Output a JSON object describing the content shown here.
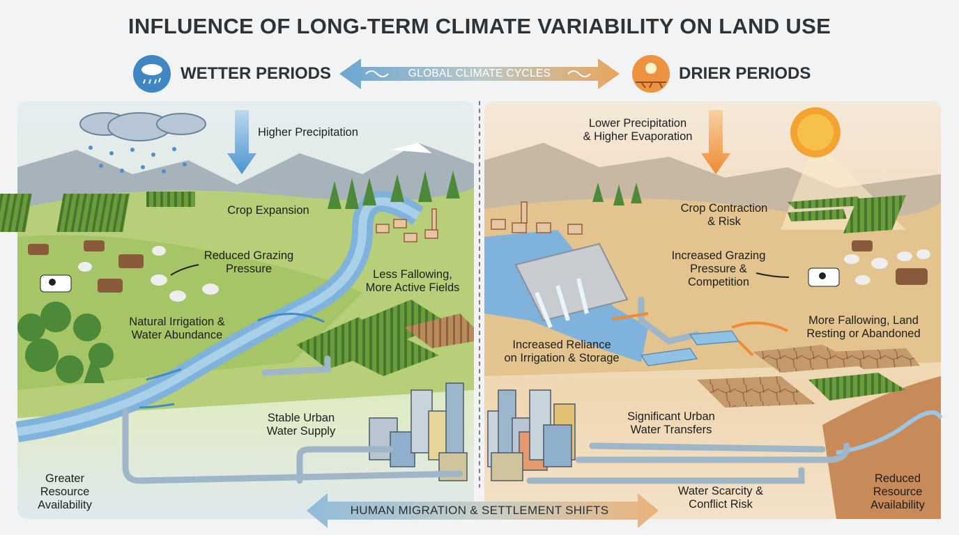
{
  "title": "INFLUENCE OF LONG-TERM CLIMATE VARIABILITY ON LAND USE",
  "header": {
    "wet": "WETTER PERIODS",
    "cycle": "GLOBAL CLIMATE CYCLES",
    "dry": "DRIER PERIODS"
  },
  "wet_panel": {
    "labels": [
      [
        "Higher Precipitation"
      ],
      [
        "Crop Expansion"
      ],
      [
        "Reduced Grazing",
        "Pressure"
      ],
      [
        "Less Fallowing,",
        "More Active Fields"
      ],
      [
        "Natural Irrigation &",
        "Water Abundance"
      ],
      [
        "Stable Urban",
        "Water Supply"
      ],
      [
        "Greater",
        "Resource",
        "Availability"
      ]
    ]
  },
  "dry_panel": {
    "labels": [
      [
        "Lower Precipitation",
        "& Higher Evaporation"
      ],
      [
        "Crop Contraction",
        "& Risk"
      ],
      [
        "Increased Grazing",
        "Pressure &",
        "Competition"
      ],
      [
        "More Fallowing, Land",
        "Resting or Abandoned"
      ],
      [
        "Increased Reliance",
        "on Irrigation & Storage"
      ],
      [
        "Significant Urban",
        "Water Transfers"
      ],
      [
        "Water Scarcity &",
        "Conflict Risk"
      ],
      [
        "Reduced",
        "Resource",
        "Availability"
      ]
    ]
  },
  "footer": "HUMAN MIGRATION & SETTLEMENT SHIFTS"
}
